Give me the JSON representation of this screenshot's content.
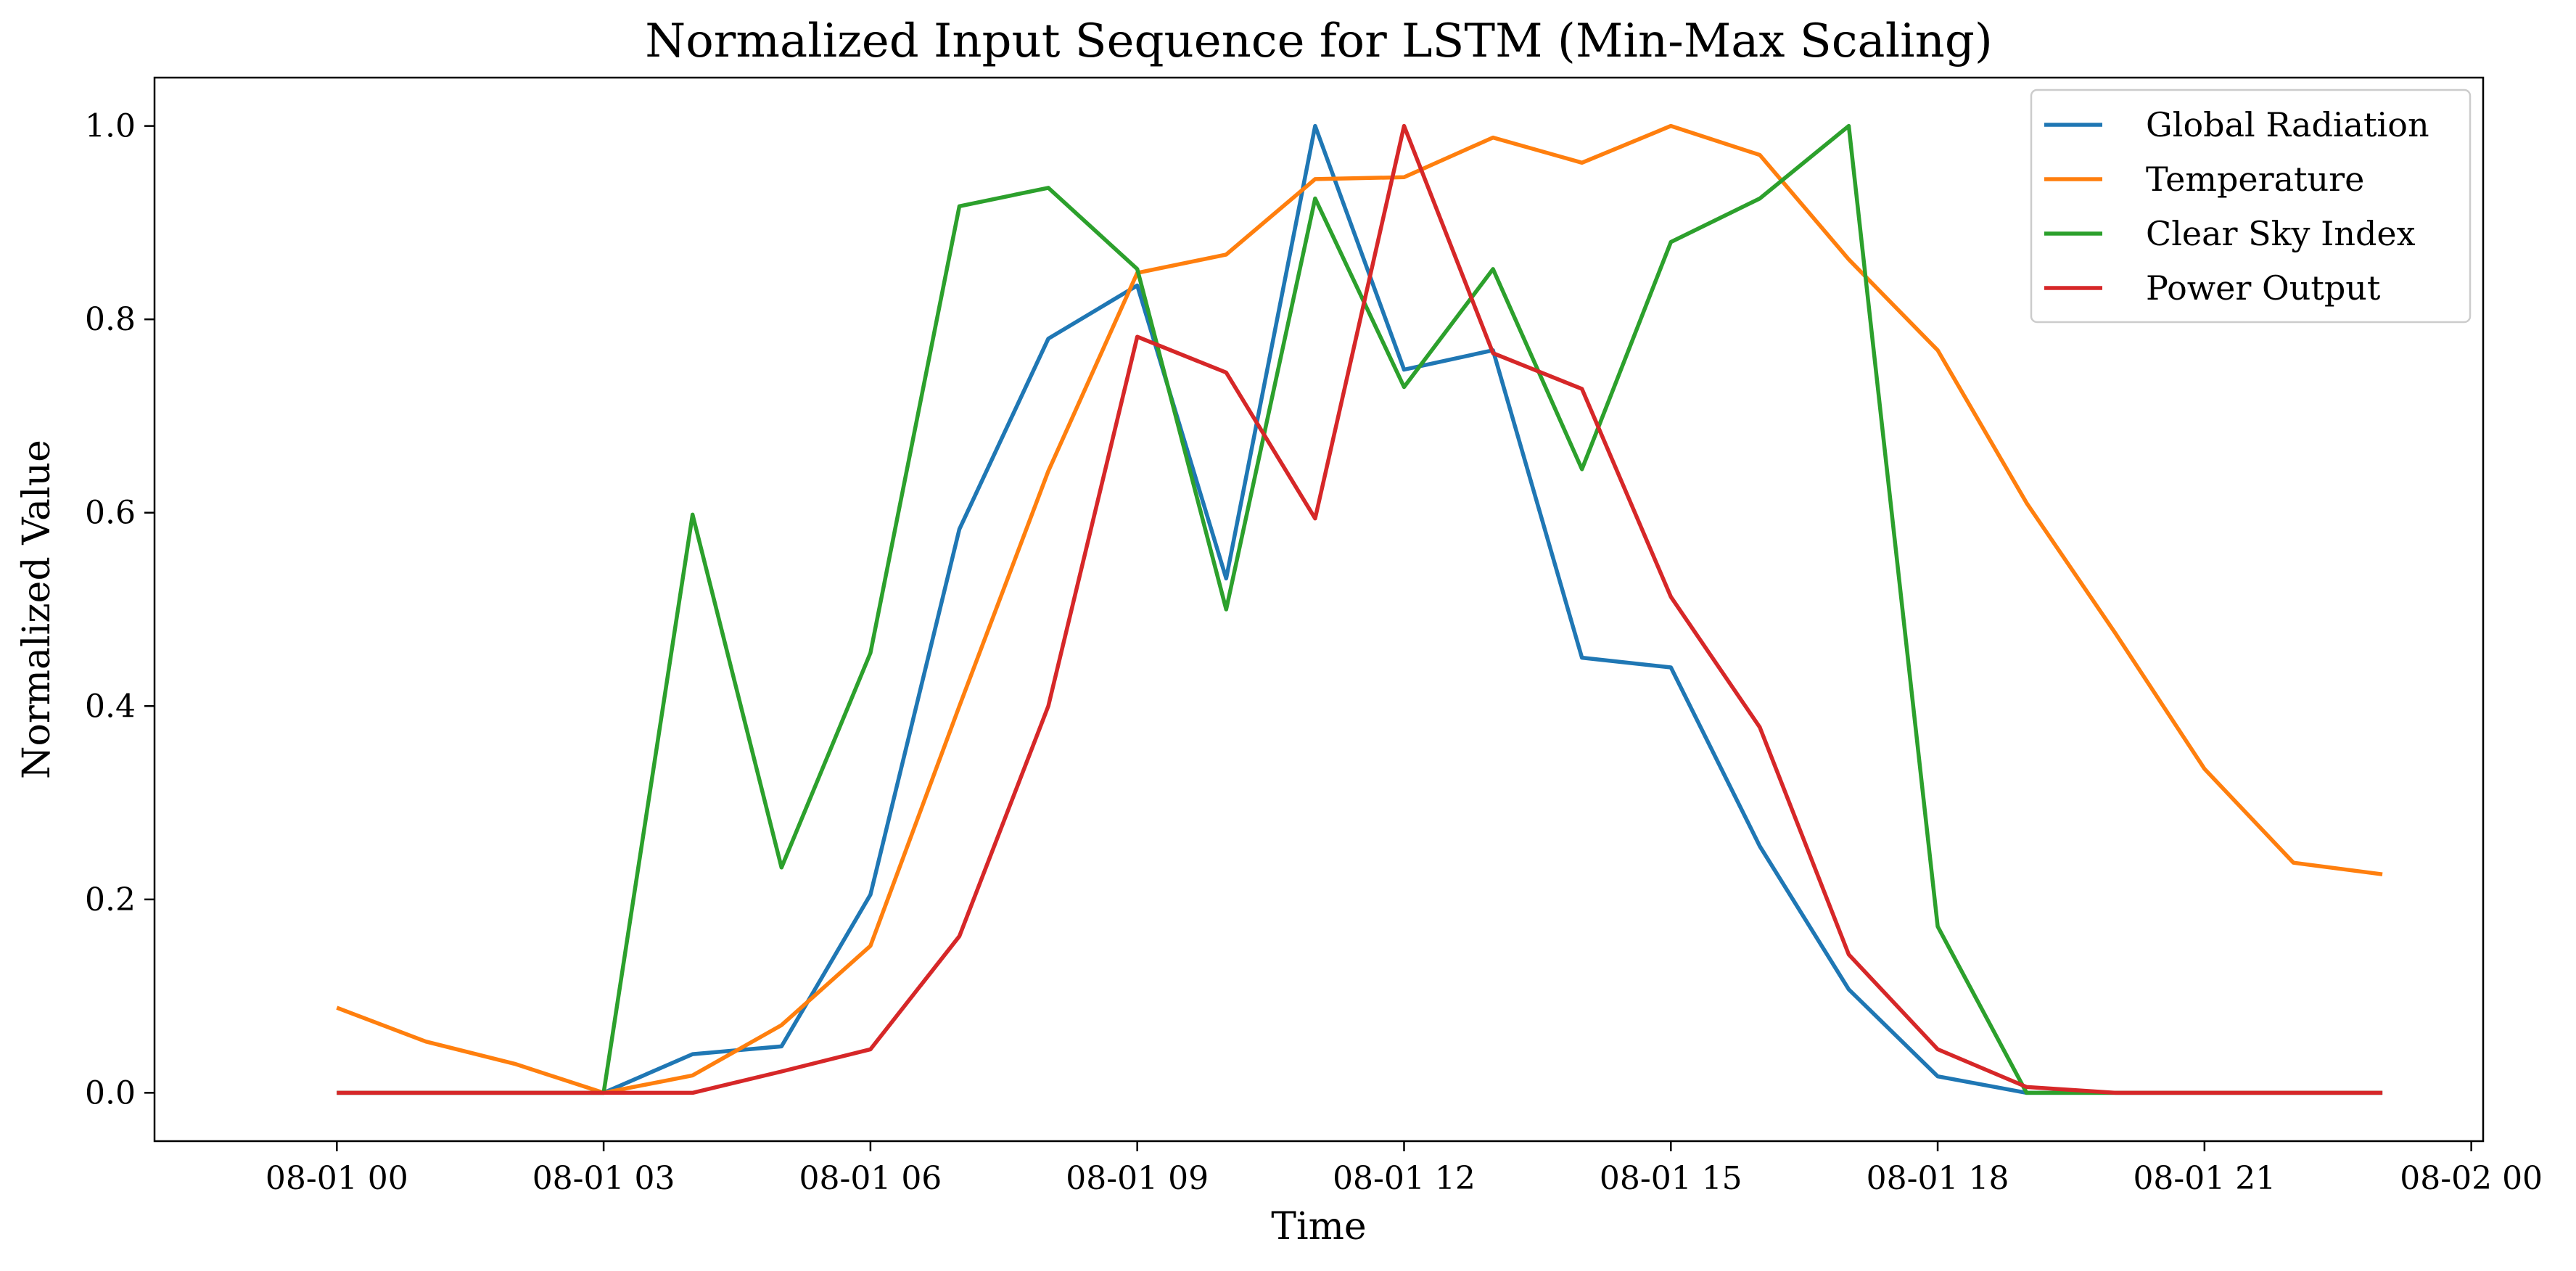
{
  "chart_data": {
    "type": "line",
    "title": "Normalized Input Sequence for LSTM (Min-Max Scaling)",
    "xlabel": "Time",
    "ylabel": "Normalized Value",
    "x": [
      "08-01 00",
      "08-01 01",
      "08-01 02",
      "08-01 03",
      "08-01 04",
      "08-01 05",
      "08-01 06",
      "08-01 07",
      "08-01 08",
      "08-01 09",
      "08-01 10",
      "08-01 11",
      "08-01 12",
      "08-01 13",
      "08-01 14",
      "08-01 15",
      "08-01 16",
      "08-01 17",
      "08-01 18",
      "08-01 19",
      "08-01 20",
      "08-01 21",
      "08-01 22",
      "08-01 23"
    ],
    "xlim": [
      "07-31 21:57",
      "08-02 00:08"
    ],
    "ylim": [
      -0.05,
      1.05
    ],
    "x_ticks": [
      "08-01 00",
      "08-01 03",
      "08-01 06",
      "08-01 09",
      "08-01 12",
      "08-01 15",
      "08-01 18",
      "08-01 21",
      "08-02 00"
    ],
    "y_ticks": [
      "0.0",
      "0.2",
      "0.4",
      "0.6",
      "0.8",
      "1.0"
    ],
    "legend_position": "top-right",
    "grid": false,
    "series": [
      {
        "name": "Global Radiation",
        "color": "#1f77b4",
        "values": [
          0,
          0,
          0,
          0,
          0.04,
          0.048,
          0.205,
          0.583,
          0.78,
          0.835,
          0.532,
          1.0,
          0.748,
          0.768,
          0.45,
          0.44,
          0.255,
          0.107,
          0.017,
          0,
          0,
          0,
          0,
          0
        ]
      },
      {
        "name": "Temperature",
        "color": "#ff7f0e",
        "values": [
          0.088,
          0.053,
          0.03,
          0,
          0.018,
          0.07,
          0.152,
          0.4,
          0.643,
          0.848,
          0.867,
          0.945,
          0.947,
          0.988,
          0.962,
          1.0,
          0.97,
          0.862,
          0.768,
          0.61,
          0.475,
          0.335,
          0.238,
          0.226
        ]
      },
      {
        "name": "Clear Sky Index",
        "color": "#2ca02c",
        "values": [
          0,
          0,
          0,
          0,
          0.598,
          0.233,
          0.455,
          0.917,
          0.936,
          0.852,
          0.5,
          0.925,
          0.73,
          0.852,
          0.645,
          0.88,
          0.925,
          1.0,
          0.172,
          0,
          0,
          0,
          0,
          0
        ]
      },
      {
        "name": "Power Output",
        "color": "#d62728",
        "values": [
          0,
          0,
          0,
          0,
          0,
          0.022,
          0.045,
          0.162,
          0.4,
          0.782,
          0.745,
          0.594,
          1.0,
          0.765,
          0.728,
          0.513,
          0.378,
          0.143,
          0.045,
          0.006,
          0,
          0,
          0,
          0
        ]
      }
    ]
  }
}
